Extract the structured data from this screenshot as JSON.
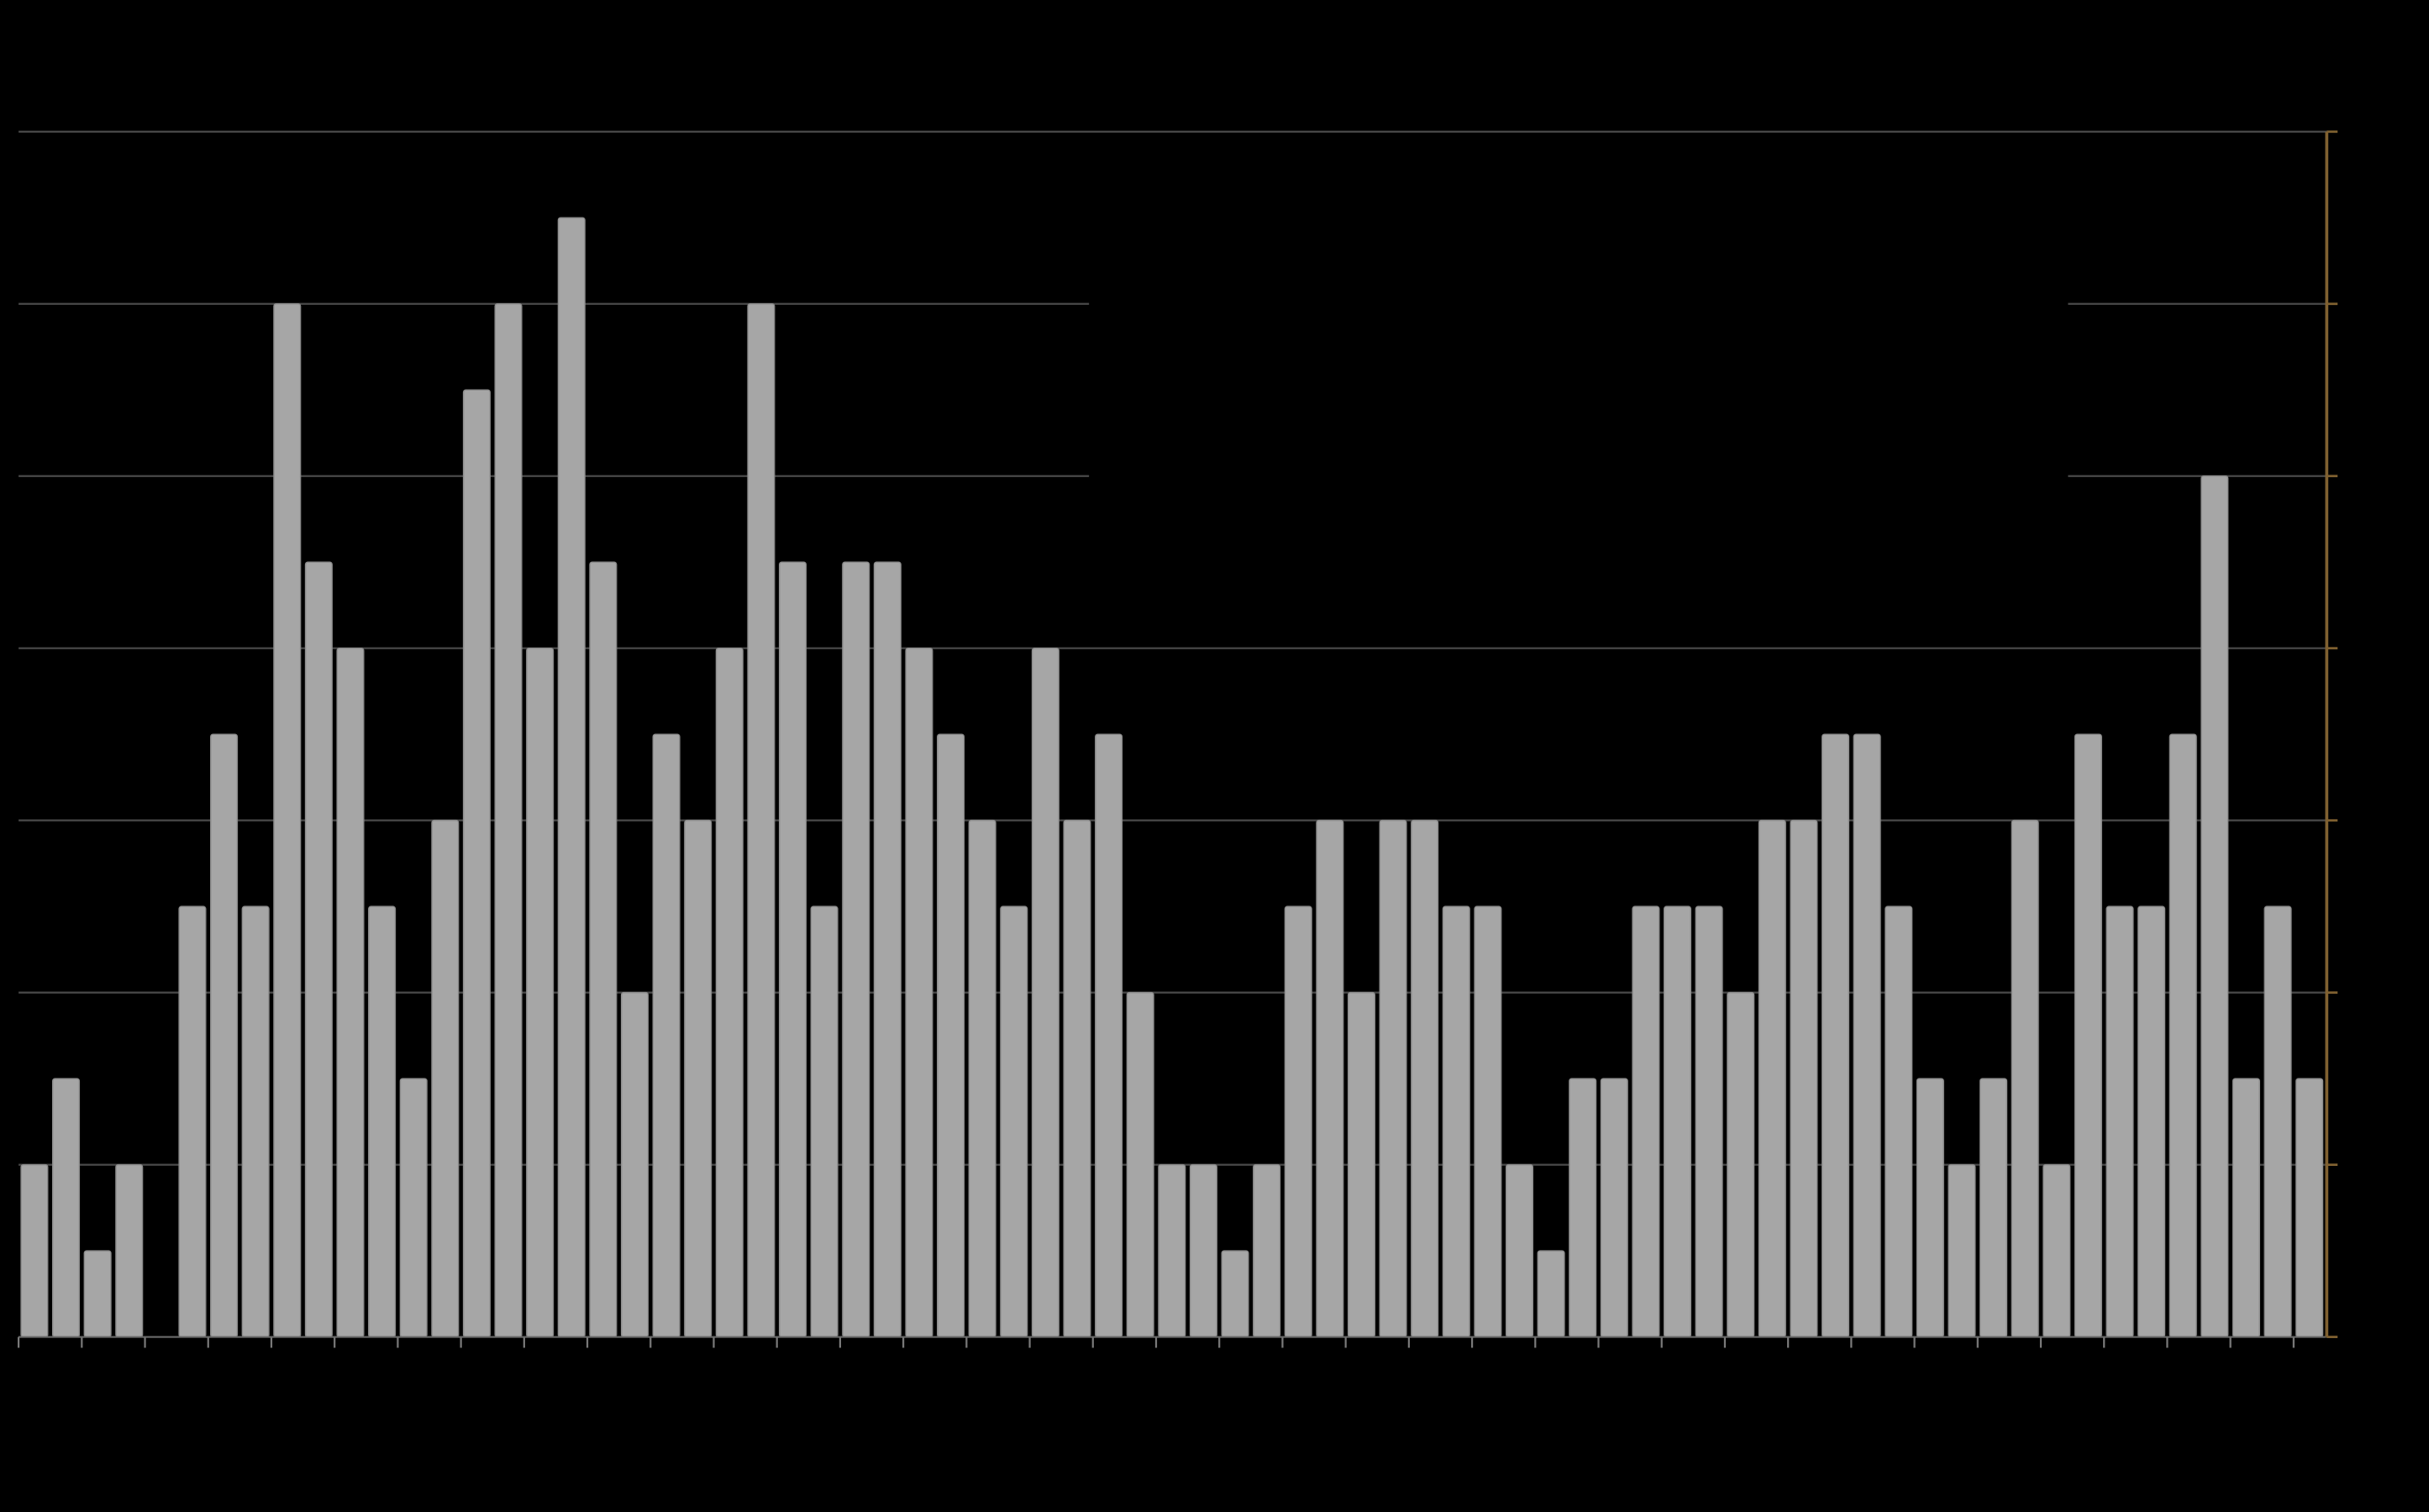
{
  "chart_data": {
    "type": "bar",
    "categories": [
      null,
      null,
      null,
      null,
      null,
      null,
      null,
      null,
      null,
      null,
      null,
      null,
      null,
      null,
      null,
      null,
      null,
      null,
      null,
      null,
      null,
      null,
      null,
      null,
      null,
      null,
      null,
      null,
      null,
      null,
      null,
      null,
      null,
      null,
      null,
      null,
      null,
      null,
      null,
      null,
      null,
      null,
      null,
      null,
      null,
      null,
      null,
      null,
      null,
      null,
      null,
      null,
      null,
      null,
      null,
      null,
      null,
      null,
      null,
      null,
      null,
      null,
      null,
      null,
      null,
      null,
      null,
      null,
      null,
      null,
      null,
      null,
      null
    ],
    "values": [
      2,
      3,
      1,
      2,
      0,
      5,
      7,
      5,
      12,
      9,
      8,
      5,
      3,
      6,
      11,
      12,
      8,
      13,
      9,
      4,
      7,
      6,
      8,
      12,
      9,
      5,
      9,
      9,
      8,
      7,
      6,
      5,
      8,
      6,
      7,
      4,
      2,
      2,
      1,
      2,
      5,
      6,
      4,
      6,
      6,
      5,
      5,
      2,
      1,
      3,
      3,
      5,
      5,
      5,
      4,
      6,
      6,
      7,
      7,
      5,
      3,
      2,
      3,
      6,
      2,
      7,
      5,
      5,
      7,
      10,
      3,
      5,
      3
    ],
    "color": "#a6a6a6",
    "ylim": [
      0,
      14
    ],
    "yticks": [
      0,
      2,
      4,
      6,
      8,
      10,
      12,
      14
    ],
    "grid": true,
    "y_axis_side": "right",
    "y_axis_color": "#7f6030"
  }
}
